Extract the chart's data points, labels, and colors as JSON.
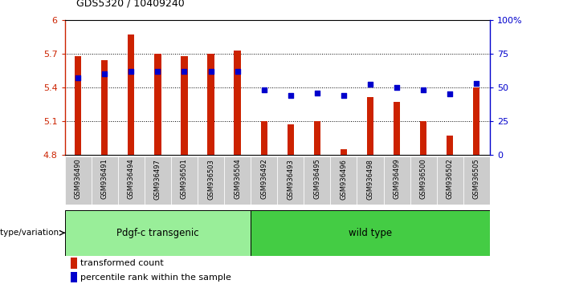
{
  "title": "GDS5320 / 10409240",
  "categories": [
    "GSM936490",
    "GSM936491",
    "GSM936494",
    "GSM936497",
    "GSM936501",
    "GSM936503",
    "GSM936504",
    "GSM936492",
    "GSM936493",
    "GSM936495",
    "GSM936496",
    "GSM936498",
    "GSM936499",
    "GSM936500",
    "GSM936502",
    "GSM936505"
  ],
  "red_values": [
    5.68,
    5.64,
    5.87,
    5.7,
    5.68,
    5.7,
    5.73,
    5.1,
    5.07,
    5.1,
    4.85,
    5.31,
    5.27,
    5.1,
    4.97,
    5.4
  ],
  "blue_values": [
    57,
    60,
    62,
    62,
    62,
    62,
    62,
    48,
    44,
    46,
    44,
    52,
    50,
    48,
    45,
    53
  ],
  "ylim_left": [
    4.8,
    6.0
  ],
  "ylim_right": [
    0,
    100
  ],
  "yticks_left": [
    4.8,
    5.1,
    5.4,
    5.7,
    6.0
  ],
  "ytick_labels_left": [
    "4.8",
    "5.1",
    "5.4",
    "5.7",
    "6"
  ],
  "yticks_right": [
    0,
    25,
    50,
    75,
    100
  ],
  "ytick_labels_right": [
    "0",
    "25",
    "50",
    "75",
    "100%"
  ],
  "hlines": [
    5.1,
    5.4,
    5.7
  ],
  "bar_color": "#cc2200",
  "dot_color": "#0000cc",
  "group1_label": "Pdgf-c transgenic",
  "group2_label": "wild type",
  "group1_color": "#99ee99",
  "group2_color": "#44cc44",
  "group1_count": 7,
  "group2_count": 9,
  "legend_red": "transformed count",
  "legend_blue": "percentile rank within the sample",
  "genotype_label": "genotype/variation",
  "base_value": 4.8,
  "bg_color": "#ffffff",
  "tick_bg_color": "#cccccc",
  "bar_width": 0.25
}
